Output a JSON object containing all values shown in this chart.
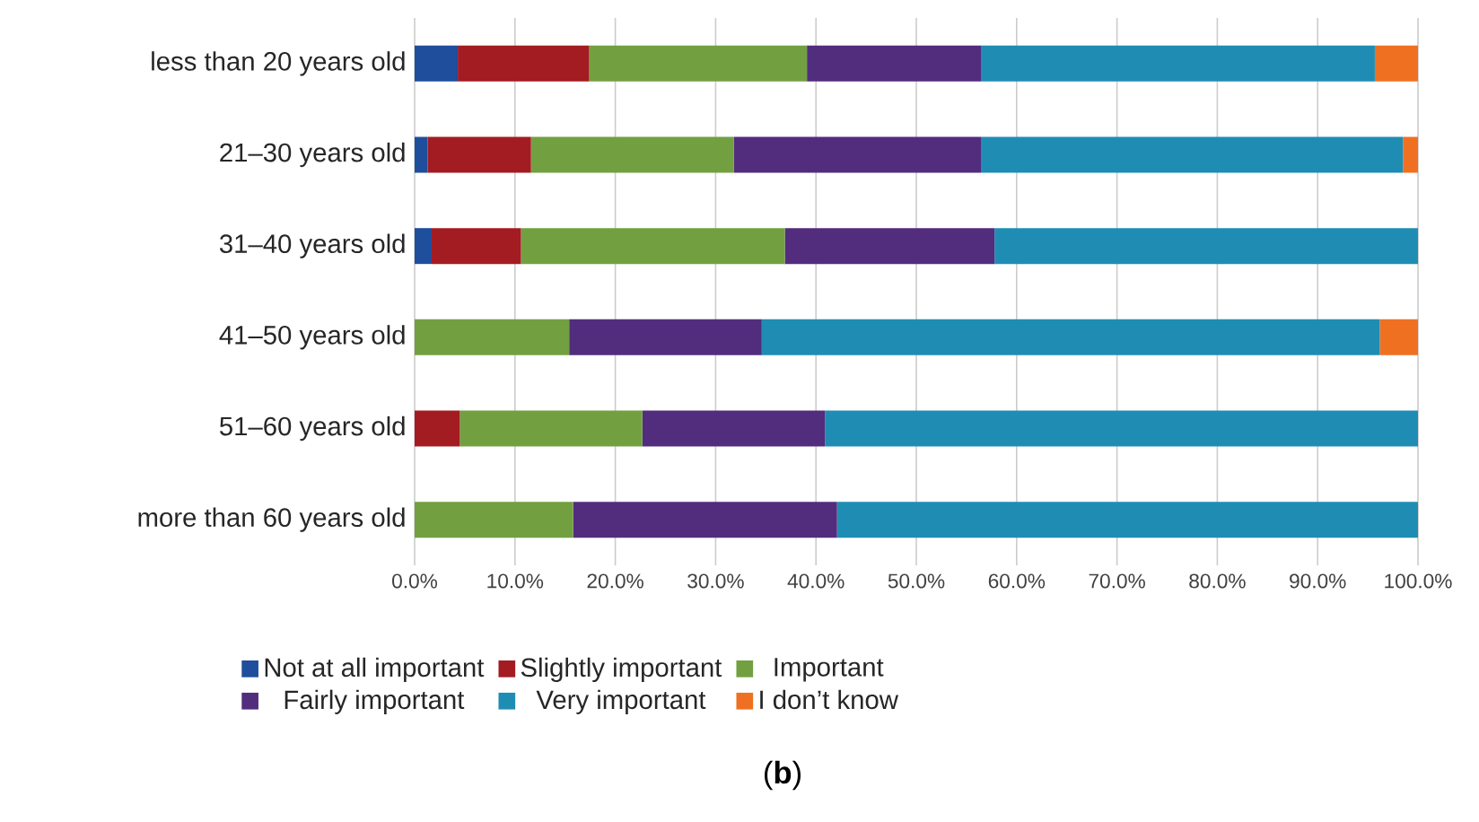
{
  "chart_data": {
    "type": "bar",
    "orientation": "horizontal",
    "stacked": true,
    "categories": [
      "less than 20 years old",
      "21–30 years old",
      "31–40 years old",
      "41–50 years old",
      "51–60 years old",
      "more than 60 years old"
    ],
    "series": [
      {
        "name": "Not at all important",
        "color": "#1f4e9c",
        "values": [
          4.3,
          1.3,
          1.7,
          0,
          0,
          0
        ]
      },
      {
        "name": "Slightly important",
        "color": "#a31c22",
        "values": [
          13.1,
          10.3,
          8.9,
          0,
          4.5,
          0
        ]
      },
      {
        "name": "Important",
        "color": "#72a040",
        "values": [
          21.7,
          20.2,
          26.3,
          15.4,
          18.2,
          15.8
        ]
      },
      {
        "name": "Fairly important",
        "color": "#522d7e",
        "values": [
          17.4,
          24.7,
          20.9,
          19.2,
          18.2,
          26.3
        ]
      },
      {
        "name": "Very important",
        "color": "#1f8db3",
        "values": [
          39.2,
          42.0,
          42.2,
          61.6,
          59.1,
          57.9
        ]
      },
      {
        "name": "I don’t know",
        "color": "#f07022",
        "values": [
          4.3,
          1.5,
          0,
          3.8,
          0,
          0
        ]
      }
    ],
    "xlim": [
      0,
      100
    ],
    "xticks": [
      {
        "value": 0,
        "label": "0.0%"
      },
      {
        "value": 10,
        "label": "10.0%"
      },
      {
        "value": 20,
        "label": "20.0%"
      },
      {
        "value": 30,
        "label": "30.0%"
      },
      {
        "value": 40,
        "label": "40.0%"
      },
      {
        "value": 50,
        "label": "50.0%"
      },
      {
        "value": 60,
        "label": "60.0%"
      },
      {
        "value": 70,
        "label": "70.0%"
      },
      {
        "value": 80,
        "label": "80.0%"
      },
      {
        "value": 90,
        "label": "90.0%"
      },
      {
        "value": 100,
        "label": "100.0%"
      }
    ],
    "grid": "x",
    "legend": "bottom",
    "annotations": [
      "(**b**)"
    ]
  }
}
